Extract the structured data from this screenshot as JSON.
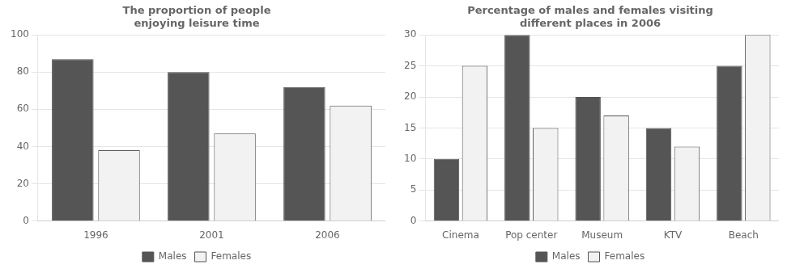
{
  "chart_data": [
    {
      "type": "bar",
      "title": "The proportion of people\nenjoying leisure time",
      "categories": [
        "1996",
        "2001",
        "2006"
      ],
      "series": [
        {
          "name": "Males",
          "color": "#555555",
          "values": [
            87,
            80,
            72
          ]
        },
        {
          "name": "Females",
          "color": "#f2f2f2",
          "values": [
            38,
            47,
            62
          ]
        }
      ],
      "ylim": [
        0,
        100
      ],
      "yticks": [
        0,
        20,
        40,
        60,
        80,
        100
      ],
      "grid": true,
      "legend": "bottom"
    },
    {
      "type": "bar",
      "title": "Percentage of males and females visiting\ndifferent places in 2006",
      "categories": [
        "Cinema",
        "Pop center",
        "Museum",
        "KTV",
        "Beach"
      ],
      "series": [
        {
          "name": "Males",
          "color": "#555555",
          "values": [
            10,
            30,
            20,
            15,
            25
          ]
        },
        {
          "name": "Females",
          "color": "#f2f2f2",
          "values": [
            25,
            15,
            17,
            12,
            30
          ]
        }
      ],
      "ylim": [
        0,
        30
      ],
      "yticks": [
        0,
        5,
        10,
        15,
        20,
        25,
        30
      ],
      "grid": true,
      "legend": "bottom"
    }
  ]
}
